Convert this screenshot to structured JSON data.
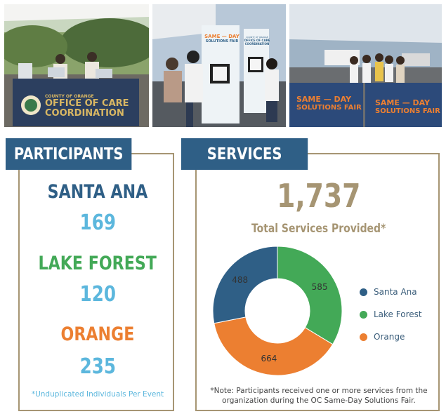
{
  "photos": [
    {
      "banner_lines": [
        "COUNTY OF ORANGE",
        "OFFICE OF CARE",
        "COORDINATION"
      ]
    },
    {
      "banner_lines": [
        "SAME — DAY",
        "SOLUTIONS FAIR"
      ],
      "banner2_lines": [
        "COUNTY OF ORANGE",
        "OFFICE OF CARE",
        "COORDINATION"
      ]
    },
    {
      "banner_lines": [
        "SAME — DAY",
        "SOLUTIONS FAIR"
      ],
      "banner2_lines": [
        "SAME — DAY",
        "SOLUTIONS FAIR"
      ]
    }
  ],
  "participants": {
    "title": "PARTICIPANTS",
    "locations": [
      {
        "name": "SANTA ANA",
        "count": "169"
      },
      {
        "name": "LAKE FOREST",
        "count": "120"
      },
      {
        "name": "ORANGE",
        "count": "235"
      }
    ],
    "footnote": "*Unduplicated Individuals Per Event"
  },
  "services": {
    "title": "SERVICES",
    "total": "1,737",
    "total_label": "Total Services Provided*",
    "note": "*Note: Participants received one or more services from the organization during the OC Same-Day Solutions Fair."
  },
  "colors": {
    "navy": "#2f5f86",
    "green": "#43a957",
    "orange": "#ec7f31",
    "light_blue": "#5cb7dd",
    "gold": "#a69573"
  },
  "chart_data": {
    "type": "pie",
    "variant": "donut",
    "categories": [
      "Santa Ana",
      "Lake Forest",
      "Orange"
    ],
    "values": [
      488,
      585,
      664
    ],
    "colors": [
      "#2f5f86",
      "#43a957",
      "#ec7f31"
    ],
    "legend": "right"
  }
}
